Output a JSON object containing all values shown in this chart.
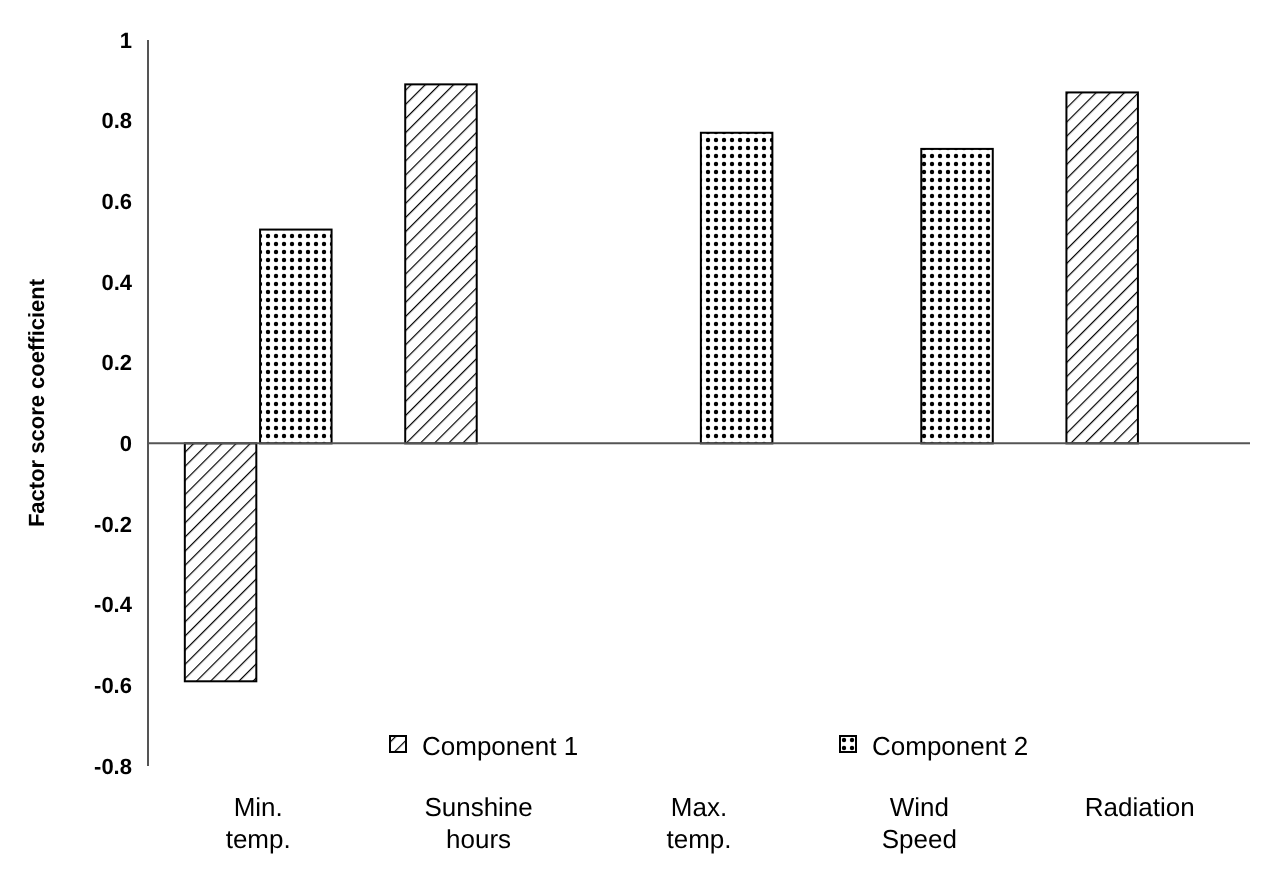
{
  "chart_data": {
    "type": "bar",
    "ylabel": "Factor score coefficient",
    "categories": [
      "Min. temp.",
      "Sunshine hours",
      "Max. temp.",
      "Wind Speed",
      "Radiation"
    ],
    "series": [
      {
        "name": "Component 1",
        "color": "#000000",
        "values": [
          -0.59,
          0.89,
          null,
          null,
          0.87
        ]
      },
      {
        "name": "Component 2",
        "color": "#000000",
        "values": [
          0.53,
          null,
          0.77,
          0.73,
          null
        ]
      }
    ],
    "ylim": [
      -0.8,
      1
    ],
    "yticks": [
      -0.8,
      -0.6,
      -0.4,
      -0.2,
      0,
      0.2,
      0.4,
      0.6,
      0.8,
      1
    ],
    "legend": "bottom"
  }
}
